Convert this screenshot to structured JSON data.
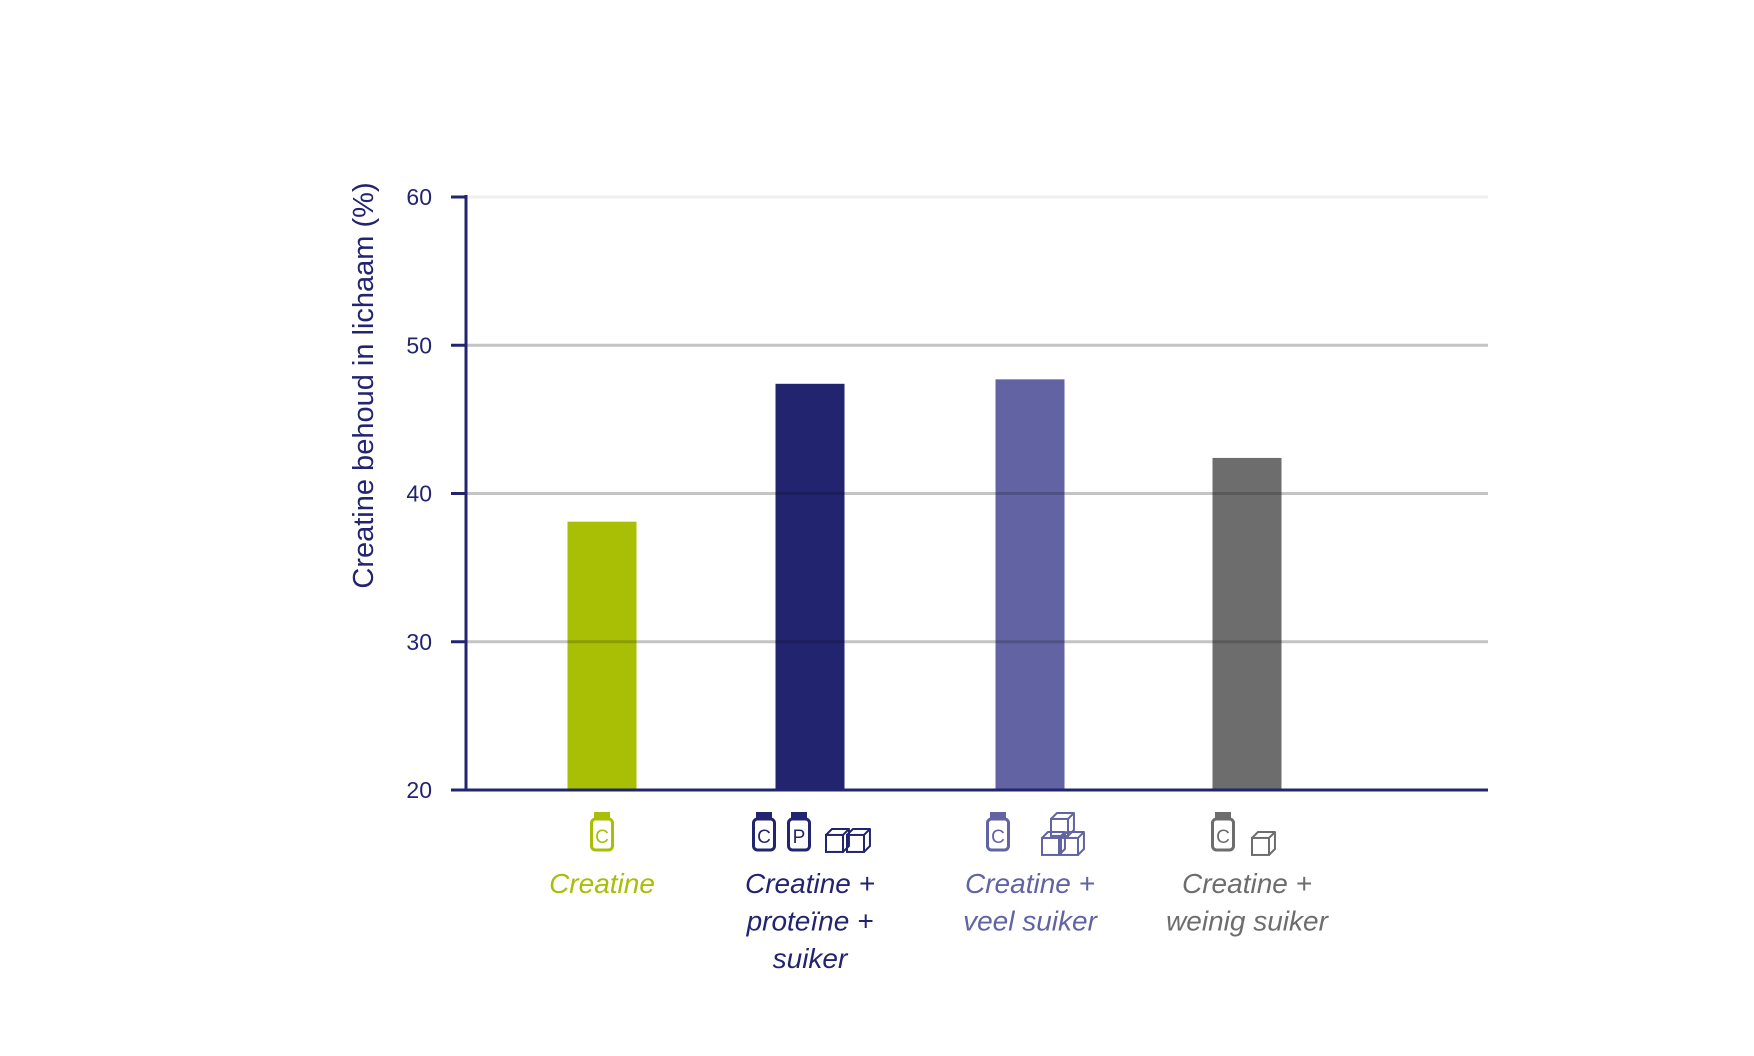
{
  "chart_data": {
    "type": "bar",
    "ylabel": "Creatine behoud in lichaam (%)",
    "ylim": [
      20,
      60
    ],
    "yticks": [
      20,
      30,
      40,
      50,
      60
    ],
    "grid": true,
    "categories": [
      "Creatine",
      "Creatine + proteïne + suiker",
      "Creatine + veel suiker",
      "Creatine + weinig suiker"
    ],
    "category_label_lines": [
      [
        "Creatine"
      ],
      [
        "Creatine +",
        "proteïne +",
        "suiker"
      ],
      [
        "Creatine +",
        "veel suiker"
      ],
      [
        "Creatine +",
        "weinig suiker"
      ]
    ],
    "values": [
      38.1,
      47.4,
      47.7,
      42.4
    ],
    "colors": [
      "#a8bf05",
      "#232470",
      "#6163a3",
      "#6d6d6d"
    ],
    "icons": [
      [
        "creatine-jar-icon"
      ],
      [
        "creatine-jar-icon",
        "protein-jar-icon",
        "sugar-cubes-icon"
      ],
      [
        "creatine-jar-icon",
        "sugar-cubes-stack-icon"
      ],
      [
        "creatine-jar-icon",
        "sugar-cube-icon"
      ]
    ],
    "icon_letters": {
      "creatine-jar-icon": "C",
      "protein-jar-icon": "P"
    },
    "axis_color": "#232470"
  }
}
